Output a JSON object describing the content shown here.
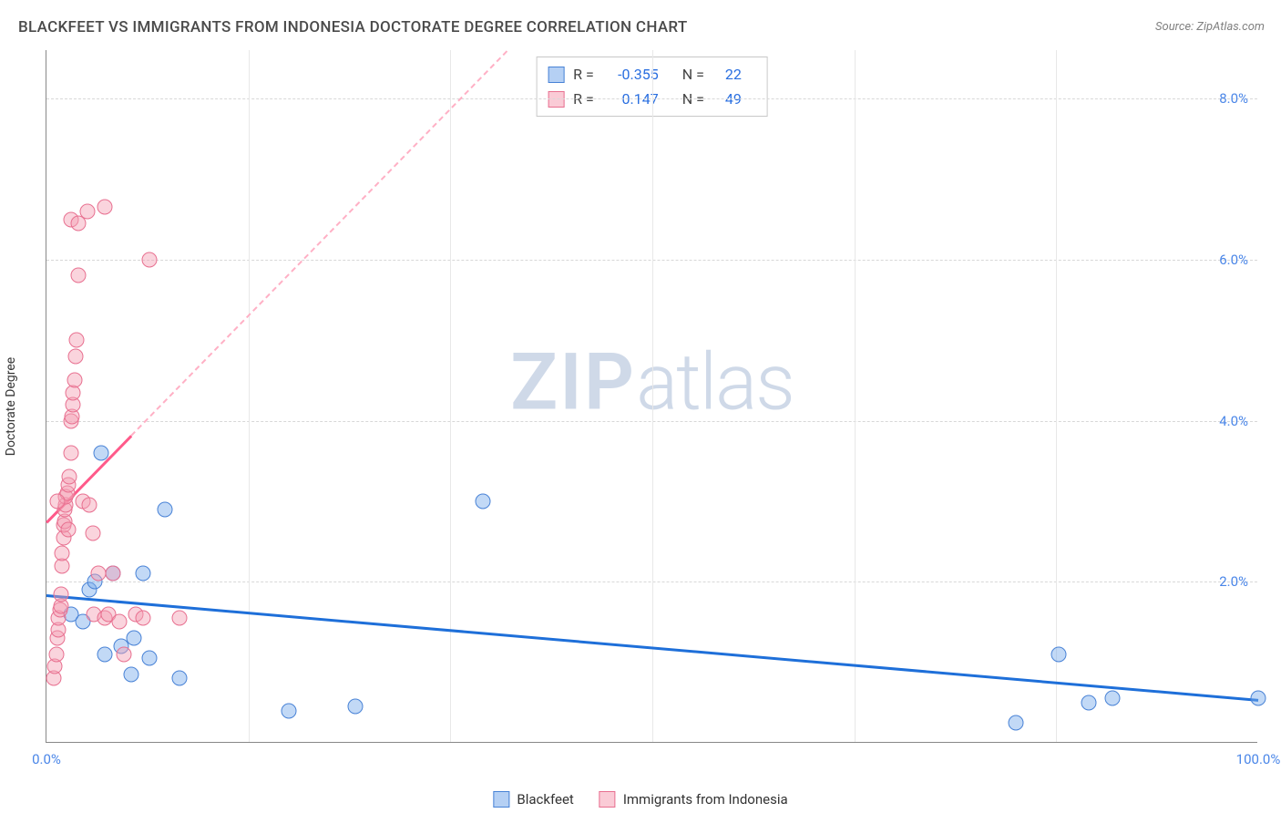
{
  "title": "BLACKFEET VS IMMIGRANTS FROM INDONESIA DOCTORATE DEGREE CORRELATION CHART",
  "source": "Source: ZipAtlas.com",
  "watermark": {
    "bold": "ZIP",
    "light": "atlas"
  },
  "chart": {
    "type": "scatter",
    "background_color": "#ffffff",
    "grid_color": "#dcdcdc",
    "xlim": [
      0,
      100
    ],
    "ylim": [
      0,
      8.6
    ],
    "yticks": [
      {
        "v": 2.0,
        "label": "2.0%"
      },
      {
        "v": 4.0,
        "label": "4.0%"
      },
      {
        "v": 6.0,
        "label": "6.0%"
      },
      {
        "v": 8.0,
        "label": "8.0%"
      }
    ],
    "xticks": [
      {
        "v": 0.0,
        "label": "0.0%",
        "grid": false
      },
      {
        "v": 16.7,
        "label": "",
        "grid": true
      },
      {
        "v": 33.3,
        "label": "",
        "grid": true
      },
      {
        "v": 50.0,
        "label": "",
        "grid": true
      },
      {
        "v": 66.7,
        "label": "",
        "grid": true
      },
      {
        "v": 83.3,
        "label": "",
        "grid": true
      },
      {
        "v": 100.0,
        "label": "100.0%",
        "grid": false
      }
    ],
    "ylabel": "Doctorate Degree",
    "series": [
      {
        "name": "Blackfeet",
        "color_fill": "rgba(120,170,235,0.45)",
        "color_stroke": "#4882d6",
        "marker_size": 17,
        "R": "-0.355",
        "N": "22",
        "points": [
          [
            2.0,
            1.6
          ],
          [
            3.0,
            1.5
          ],
          [
            3.5,
            1.9
          ],
          [
            4.0,
            2.0
          ],
          [
            4.5,
            3.6
          ],
          [
            4.8,
            1.1
          ],
          [
            5.5,
            2.1
          ],
          [
            6.2,
            1.2
          ],
          [
            7.2,
            1.3
          ],
          [
            7.0,
            0.85
          ],
          [
            8.0,
            2.1
          ],
          [
            8.5,
            1.05
          ],
          [
            9.8,
            2.9
          ],
          [
            11.0,
            0.8
          ],
          [
            20.0,
            0.4
          ],
          [
            25.5,
            0.45
          ],
          [
            36.0,
            3.0
          ],
          [
            80.0,
            0.25
          ],
          [
            83.5,
            1.1
          ],
          [
            86.0,
            0.5
          ],
          [
            88.0,
            0.55
          ],
          [
            100.0,
            0.55
          ]
        ],
        "trend": {
          "x1": 0,
          "y1": 1.85,
          "x2": 100,
          "y2": 0.55,
          "solid_end_x": 100,
          "dashed": false
        }
      },
      {
        "name": "Immigrants from Indonesia",
        "color_fill": "rgba(245,160,180,0.45)",
        "color_stroke": "#e87090",
        "marker_size": 17,
        "R": "0.147",
        "N": "49",
        "points": [
          [
            0.6,
            0.8
          ],
          [
            0.7,
            0.95
          ],
          [
            0.8,
            1.1
          ],
          [
            0.9,
            1.3
          ],
          [
            1.0,
            1.4
          ],
          [
            1.0,
            1.55
          ],
          [
            1.1,
            1.65
          ],
          [
            1.2,
            1.7
          ],
          [
            1.2,
            1.85
          ],
          [
            1.3,
            2.2
          ],
          [
            1.3,
            2.35
          ],
          [
            1.4,
            2.55
          ],
          [
            1.4,
            2.7
          ],
          [
            1.5,
            2.75
          ],
          [
            1.5,
            2.9
          ],
          [
            1.6,
            2.95
          ],
          [
            1.6,
            3.05
          ],
          [
            1.7,
            3.1
          ],
          [
            1.8,
            2.65
          ],
          [
            1.8,
            3.2
          ],
          [
            1.9,
            3.3
          ],
          [
            2.0,
            3.6
          ],
          [
            2.0,
            4.0
          ],
          [
            2.1,
            4.05
          ],
          [
            2.2,
            4.2
          ],
          [
            2.2,
            4.35
          ],
          [
            2.3,
            4.5
          ],
          [
            2.4,
            4.8
          ],
          [
            2.5,
            5.0
          ],
          [
            2.6,
            5.8
          ],
          [
            2.0,
            6.5
          ],
          [
            2.6,
            6.45
          ],
          [
            3.4,
            6.6
          ],
          [
            4.8,
            6.65
          ],
          [
            8.5,
            6.0
          ],
          [
            0.9,
            3.0
          ],
          [
            3.0,
            3.0
          ],
          [
            3.5,
            2.95
          ],
          [
            3.8,
            2.6
          ],
          [
            3.9,
            1.6
          ],
          [
            4.3,
            2.1
          ],
          [
            4.8,
            1.55
          ],
          [
            5.1,
            1.6
          ],
          [
            5.5,
            2.1
          ],
          [
            6.0,
            1.5
          ],
          [
            6.4,
            1.1
          ],
          [
            7.4,
            1.6
          ],
          [
            8.0,
            1.55
          ],
          [
            11.0,
            1.55
          ]
        ],
        "trend": {
          "x1": 0,
          "y1": 2.75,
          "x2": 38,
          "y2": 8.6,
          "solid_end_x": 7,
          "dashed": true
        }
      }
    ]
  },
  "statbox": {
    "rows": [
      {
        "swatch": "blue",
        "r_label": "R =",
        "r": "-0.355",
        "n_label": "N =",
        "n": "22"
      },
      {
        "swatch": "pink",
        "r_label": "R =",
        "r": "0.147",
        "n_label": "N =",
        "n": "49"
      }
    ]
  },
  "legend": {
    "items": [
      {
        "swatch": "blue",
        "label": "Blackfeet"
      },
      {
        "swatch": "pink",
        "label": "Immigrants from Indonesia"
      }
    ]
  }
}
